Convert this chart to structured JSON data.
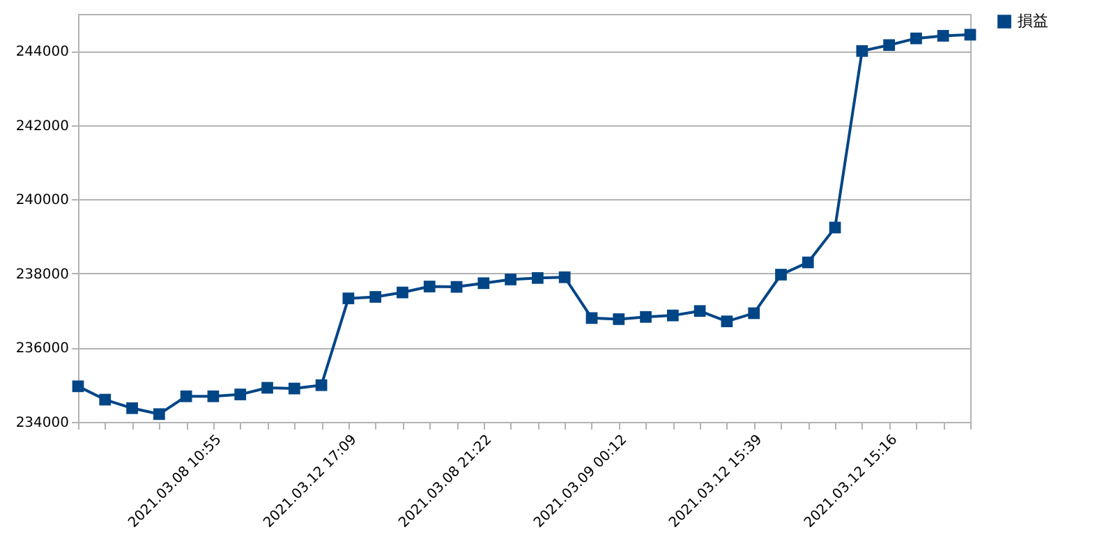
{
  "chart_data": {
    "type": "line",
    "categories": [
      null,
      null,
      null,
      null,
      null,
      "2021.03.08 10:55",
      null,
      null,
      null,
      null,
      "2021.03.12 17:09",
      null,
      null,
      null,
      null,
      "2021.03.08 21:22",
      null,
      null,
      null,
      null,
      "2021.03.09 00:12",
      null,
      null,
      null,
      null,
      "2021.03.12 15:39",
      null,
      null,
      null,
      null,
      "2021.03.12 15:16",
      null,
      null,
      null
    ],
    "series": [
      {
        "name": "損益",
        "color": "#004586",
        "values": [
          234960,
          234600,
          234370,
          234210,
          234690,
          234690,
          234740,
          234920,
          234900,
          234990,
          237330,
          237370,
          237490,
          237650,
          237640,
          237740,
          237840,
          237880,
          237900,
          236800,
          236770,
          236830,
          236870,
          236990,
          236710,
          236930,
          237970,
          238300,
          239240,
          244000,
          244160,
          244340,
          244410,
          244440
        ]
      }
    ],
    "ylim": [
      234000,
      245000
    ],
    "yticks": [
      234000,
      236000,
      238000,
      240000,
      242000,
      244000
    ],
    "grid": "y",
    "legend": "right",
    "marker": "square",
    "line_style": "solid"
  }
}
